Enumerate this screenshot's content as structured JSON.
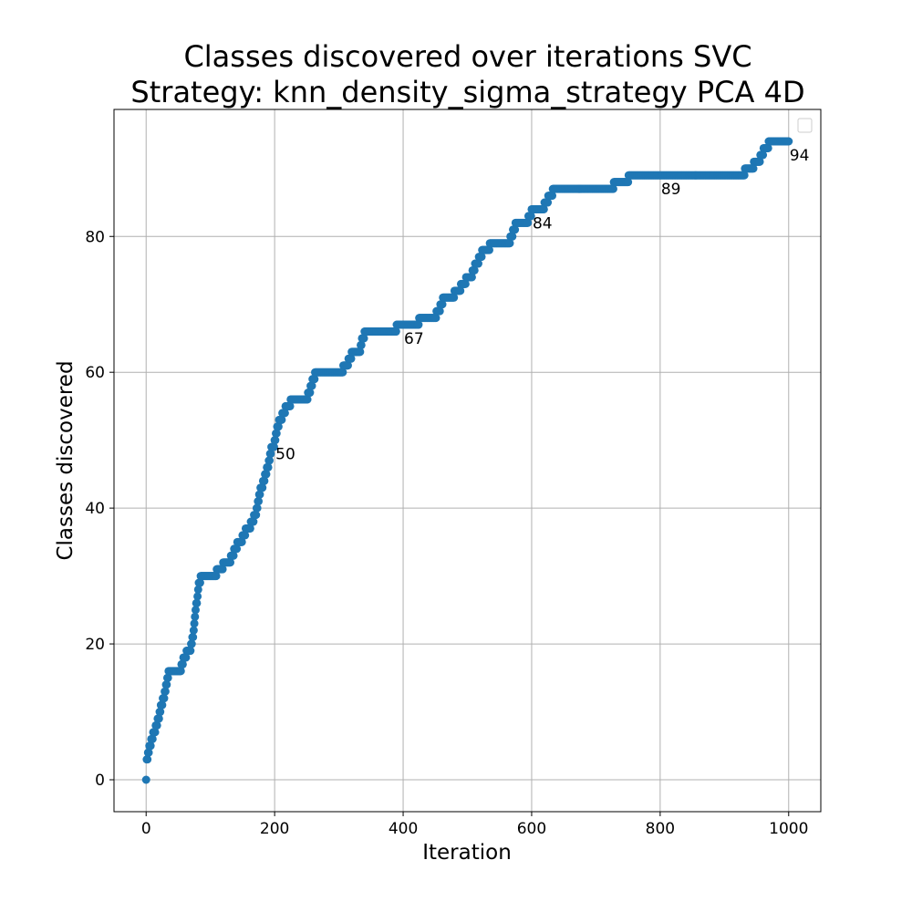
{
  "chart_data": {
    "type": "scatter",
    "title_line1": "Classes discovered over iterations SVC",
    "title_line2": "Strategy: knn_density_sigma_strategy PCA 4D",
    "xlabel": "Iteration",
    "ylabel": "Classes discovered",
    "xlim": [
      -50,
      1050
    ],
    "ylim": [
      -4.7,
      98.7
    ],
    "xticks": [
      0,
      200,
      400,
      600,
      800,
      1000
    ],
    "yticks": [
      0,
      20,
      40,
      60,
      80
    ],
    "grid": true,
    "legend": "top-right",
    "marker_color": "#1f77b4",
    "steps": [
      [
        0,
        0
      ],
      [
        1,
        3
      ],
      [
        3,
        4
      ],
      [
        5,
        5
      ],
      [
        8,
        6
      ],
      [
        11,
        7
      ],
      [
        15,
        8
      ],
      [
        18,
        9
      ],
      [
        21,
        10
      ],
      [
        23,
        11
      ],
      [
        26,
        12
      ],
      [
        29,
        13
      ],
      [
        31,
        14
      ],
      [
        33,
        15
      ],
      [
        35,
        16
      ],
      [
        55,
        17
      ],
      [
        58,
        18
      ],
      [
        63,
        19
      ],
      [
        70,
        20
      ],
      [
        72,
        21
      ],
      [
        74,
        22
      ],
      [
        75,
        23
      ],
      [
        76,
        24
      ],
      [
        77,
        25
      ],
      [
        78,
        26
      ],
      [
        80,
        27
      ],
      [
        81,
        28
      ],
      [
        82,
        29
      ],
      [
        85,
        30
      ],
      [
        110,
        31
      ],
      [
        120,
        32
      ],
      [
        132,
        33
      ],
      [
        137,
        34
      ],
      [
        142,
        35
      ],
      [
        150,
        36
      ],
      [
        155,
        37
      ],
      [
        163,
        38
      ],
      [
        168,
        39
      ],
      [
        172,
        40
      ],
      [
        174,
        41
      ],
      [
        176,
        42
      ],
      [
        178,
        43
      ],
      [
        182,
        44
      ],
      [
        185,
        45
      ],
      [
        188,
        46
      ],
      [
        191,
        47
      ],
      [
        193,
        48
      ],
      [
        195,
        49
      ],
      [
        200,
        50
      ],
      [
        202,
        51
      ],
      [
        204,
        52
      ],
      [
        207,
        53
      ],
      [
        212,
        54
      ],
      [
        217,
        55
      ],
      [
        225,
        56
      ],
      [
        252,
        57
      ],
      [
        256,
        58
      ],
      [
        259,
        59
      ],
      [
        263,
        60
      ],
      [
        307,
        61
      ],
      [
        315,
        62
      ],
      [
        320,
        63
      ],
      [
        334,
        64
      ],
      [
        336,
        65
      ],
      [
        340,
        66
      ],
      [
        390,
        67
      ],
      [
        425,
        68
      ],
      [
        452,
        69
      ],
      [
        458,
        70
      ],
      [
        462,
        71
      ],
      [
        480,
        72
      ],
      [
        490,
        73
      ],
      [
        498,
        74
      ],
      [
        508,
        75
      ],
      [
        512,
        76
      ],
      [
        518,
        77
      ],
      [
        523,
        78
      ],
      [
        535,
        79
      ],
      [
        567,
        80
      ],
      [
        571,
        81
      ],
      [
        575,
        82
      ],
      [
        595,
        83
      ],
      [
        600,
        84
      ],
      [
        620,
        85
      ],
      [
        626,
        86
      ],
      [
        633,
        87
      ],
      [
        728,
        88
      ],
      [
        751,
        89
      ],
      [
        932,
        90
      ],
      [
        946,
        91
      ],
      [
        956,
        92
      ],
      [
        961,
        93
      ],
      [
        969,
        94
      ]
    ],
    "x_end": 1000,
    "annotations": [
      {
        "x": 200,
        "y": 50,
        "text": "50"
      },
      {
        "x": 400,
        "y": 67,
        "text": "67"
      },
      {
        "x": 600,
        "y": 84,
        "text": "84"
      },
      {
        "x": 800,
        "y": 89,
        "text": "89"
      },
      {
        "x": 1000,
        "y": 94,
        "text": "94"
      }
    ]
  }
}
